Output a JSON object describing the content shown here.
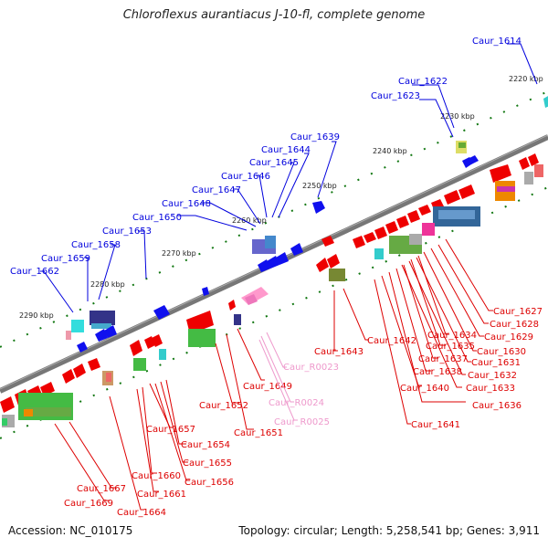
{
  "title": "Chloroflexus aurantiacus J-10-fl, complete genome",
  "footer": {
    "accession": "Accession: NC_010175",
    "summary": "Topology: circular; Length: 5,258,541 bp; Genes: 3,911"
  },
  "colors": {
    "forward": "#0000ee",
    "reverse": "#ee0000",
    "rna": "#ee88cc",
    "backbone": "#888888",
    "ticks": "#117711"
  },
  "kbp_labels": [
    "2220 kbp",
    "2230 kbp",
    "2240 kbp",
    "2250 kbp",
    "2260 kbp",
    "2270 kbp",
    "2280 kbp",
    "2290 kbp"
  ],
  "forward_labels": [
    "Caur_1614",
    "Caur_1622",
    "Caur_1623",
    "Caur_1639",
    "Caur_1644",
    "Caur_1645",
    "Caur_1646",
    "Caur_1647",
    "Caur_1648",
    "Caur_1650",
    "Caur_1653",
    "Caur_1658",
    "Caur_1659",
    "Caur_1662"
  ],
  "reverse_labels": [
    "Caur_1627",
    "Caur_1628",
    "Caur_1629",
    "Caur_1630",
    "Caur_1631",
    "Caur_1632",
    "Caur_1633",
    "Caur_1634",
    "Caur_1635",
    "Caur_1636",
    "Caur_1637",
    "Caur_1638",
    "Caur_1640",
    "Caur_1641",
    "Caur_1642",
    "Caur_1643",
    "Caur_1649",
    "Caur_1651",
    "Caur_1652",
    "Caur_1654",
    "Caur_1655",
    "Caur_1656",
    "Caur_1657",
    "Caur_1660",
    "Caur_1661",
    "Caur_1664",
    "Caur_1667",
    "Caur_1669"
  ],
  "rna_labels": [
    "Caur_R0023",
    "Caur_R0024",
    "Caur_R0025"
  ]
}
